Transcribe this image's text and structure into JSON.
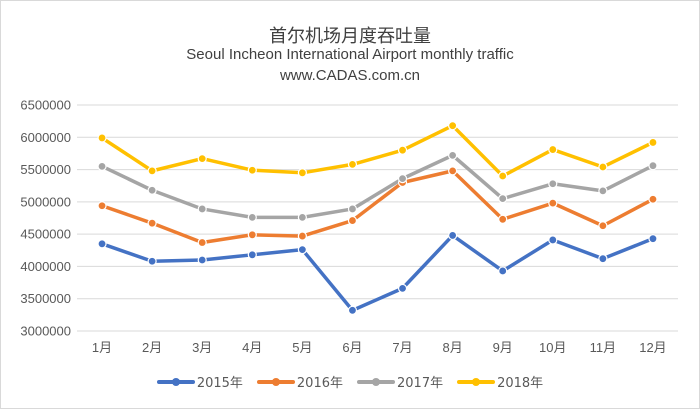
{
  "chart_data": {
    "type": "line",
    "title": "首尔机场月度吞吐量",
    "subtitle": "Seoul Incheon International Airport monthly traffic",
    "source": "www.CADAS.com.cn",
    "xlabel": "",
    "ylabel": "",
    "ylim": [
      3000000,
      6500000
    ],
    "yticks": [
      "3000000",
      "3500000",
      "4000000",
      "4500000",
      "5000000",
      "5500000",
      "6000000",
      "6500000"
    ],
    "categories": [
      "1月",
      "2月",
      "3月",
      "4月",
      "5月",
      "6月",
      "7月",
      "8月",
      "9月",
      "10月",
      "11月",
      "12月"
    ],
    "series": [
      {
        "name": "2015年",
        "color": "#4472c4",
        "values": [
          4350000,
          4080000,
          4100000,
          4180000,
          4260000,
          3320000,
          3660000,
          4480000,
          3930000,
          4410000,
          4120000,
          4430000
        ]
      },
      {
        "name": "2016年",
        "color": "#ed7d31",
        "values": [
          4940000,
          4670000,
          4370000,
          4490000,
          4470000,
          4710000,
          5300000,
          5480000,
          4730000,
          4980000,
          4630000,
          5040000
        ]
      },
      {
        "name": "2017年",
        "color": "#a5a5a5",
        "values": [
          5550000,
          5180000,
          4890000,
          4760000,
          4760000,
          4890000,
          5360000,
          5720000,
          5050000,
          5280000,
          5170000,
          5560000
        ]
      },
      {
        "name": "2018年",
        "color": "#ffc000",
        "values": [
          5990000,
          5480000,
          5670000,
          5490000,
          5450000,
          5580000,
          5800000,
          6180000,
          5400000,
          5810000,
          5540000,
          5920000
        ]
      }
    ],
    "legend_position": "bottom",
    "grid": true
  }
}
